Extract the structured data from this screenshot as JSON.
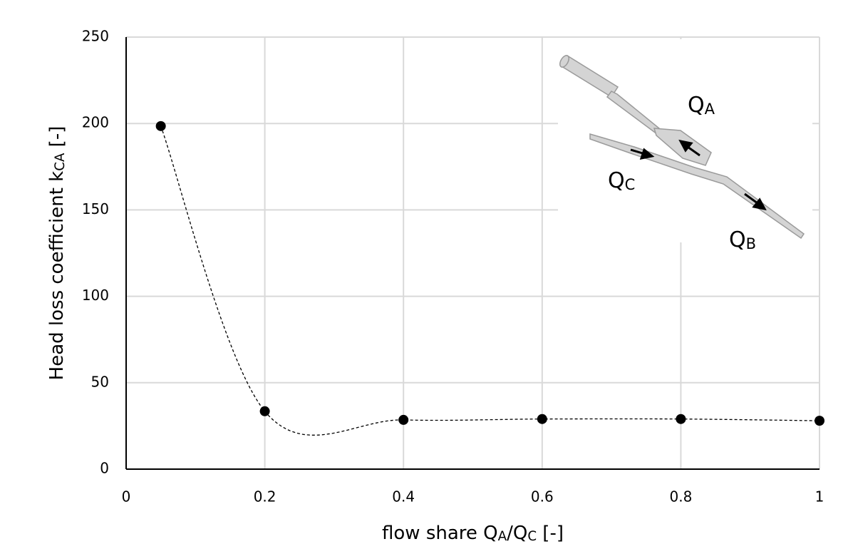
{
  "chart_data": {
    "type": "scatter",
    "x": [
      0.05,
      0.2,
      0.4,
      0.6,
      0.8,
      1
    ],
    "values": [
      198.5,
      33.5,
      28.5,
      29,
      29,
      28
    ],
    "color": "#000000",
    "smooth_dashed_line": true,
    "xlim": [
      0,
      1
    ],
    "xticks": [
      0,
      0.2,
      0.4,
      0.6,
      0.8,
      1
    ],
    "ylim": [
      0,
      250
    ],
    "yticks": [
      0,
      50,
      100,
      150,
      200,
      250
    ],
    "grid": true,
    "ylabel_parts": [
      "Head loss coefficient k",
      "CA",
      " [-]"
    ],
    "xlabel_parts": [
      "flow share Q",
      "A",
      "/Q",
      "C",
      " [-]"
    ],
    "annotations": [
      [
        "Q",
        "A"
      ],
      [
        "Q",
        "C"
      ],
      [
        "Q",
        "B"
      ]
    ]
  }
}
